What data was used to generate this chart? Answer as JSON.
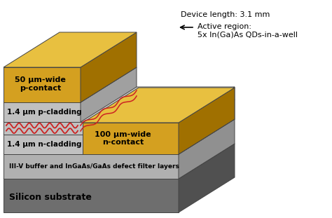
{
  "background_color": "#ffffff",
  "layers": {
    "silicon_substrate": {
      "label": "Silicon substrate",
      "face": "#6e6e6e",
      "side": "#505050",
      "top": "#7a7a7a"
    },
    "buffer": {
      "label": "III-V buffer and InGaAs/GaAs defect filter layers",
      "face": "#b0b0b0",
      "side": "#909090",
      "top": "#c4c4c4"
    },
    "n_cladding": {
      "label": "1.4 μm n-cladding",
      "face": "#c0c0c0",
      "side": "#a0a0a0",
      "top": "#d0d0d0"
    },
    "p_cladding": {
      "label": "1.4 μm p-cladding",
      "face": "#c0c0c0",
      "side": "#a0a0a0",
      "top": "#d0d0d0"
    },
    "p_contact": {
      "label": "50 μm-wide\np-contact",
      "face": "#d4a020",
      "side": "#a07000",
      "top": "#e8c040"
    },
    "n_contact": {
      "label": "100 μm-wide\nn-contact",
      "face": "#d4a020",
      "side": "#a07000",
      "top": "#e8c040"
    }
  },
  "wave_color": "#cc2222",
  "edge_color": "#444444",
  "text_color": "#000000",
  "annot_device_length": "Device length: 3.1 mm",
  "annot_arrow": "←",
  "annot_active": "Active region:\n5x In(Ga)As QDs-in-a-well"
}
